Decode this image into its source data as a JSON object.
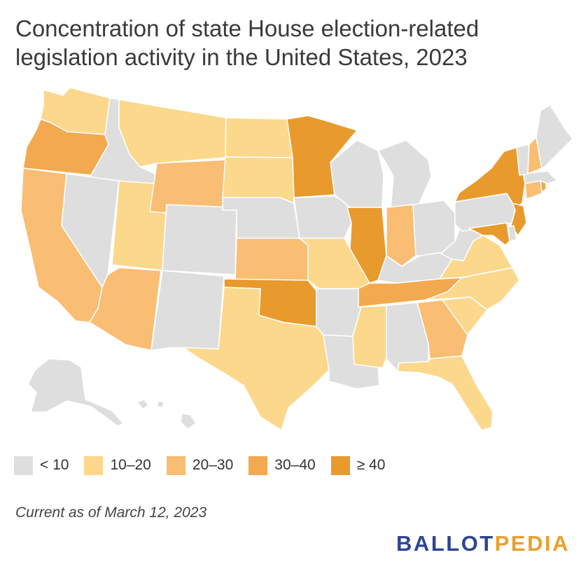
{
  "title": "Concentration of state House election-related legislation activity in the United States, 2023",
  "footnote": "Current as of March 12, 2023",
  "brand": {
    "part1": "BALLOT",
    "part2": "PEDIA",
    "color1": "#2f4592",
    "color2": "#e8a030"
  },
  "legend": [
    {
      "label": "< 10",
      "color": "#dedede"
    },
    {
      "label": "10–20",
      "color": "#fcd88c"
    },
    {
      "label": "20–30",
      "color": "#f9bd73"
    },
    {
      "label": "30–40",
      "color": "#f2a950"
    },
    {
      "label": "≥ 40",
      "color": "#e89a2c"
    }
  ],
  "state_categories": {
    "WA": 1,
    "OR": 3,
    "CA": 2,
    "ID": 0,
    "NV": 0,
    "AZ": 2,
    "UT": 1,
    "MT": 1,
    "WY": 2,
    "CO": 0,
    "NM": 0,
    "ND": 1,
    "SD": 1,
    "NE": 0,
    "KS": 2,
    "OK": 4,
    "TX": 1,
    "MN": 4,
    "IA": 0,
    "MO": 1,
    "AR": 0,
    "LA": 0,
    "WI": 0,
    "IL": 4,
    "MI": 0,
    "IN": 2,
    "OH": 0,
    "KY": 0,
    "TN": 3,
    "MS": 1,
    "AL": 0,
    "GA": 2,
    "FL": 1,
    "SC": 1,
    "NC": 1,
    "VA": 1,
    "WV": 0,
    "PA": 0,
    "NY": 4,
    "NJ": 4,
    "DE": 0,
    "MD": 4,
    "CT": 2,
    "RI": 3,
    "MA": 0,
    "VT": 0,
    "NH": 2,
    "ME": 0,
    "AK": 0,
    "HI": 0
  }
}
